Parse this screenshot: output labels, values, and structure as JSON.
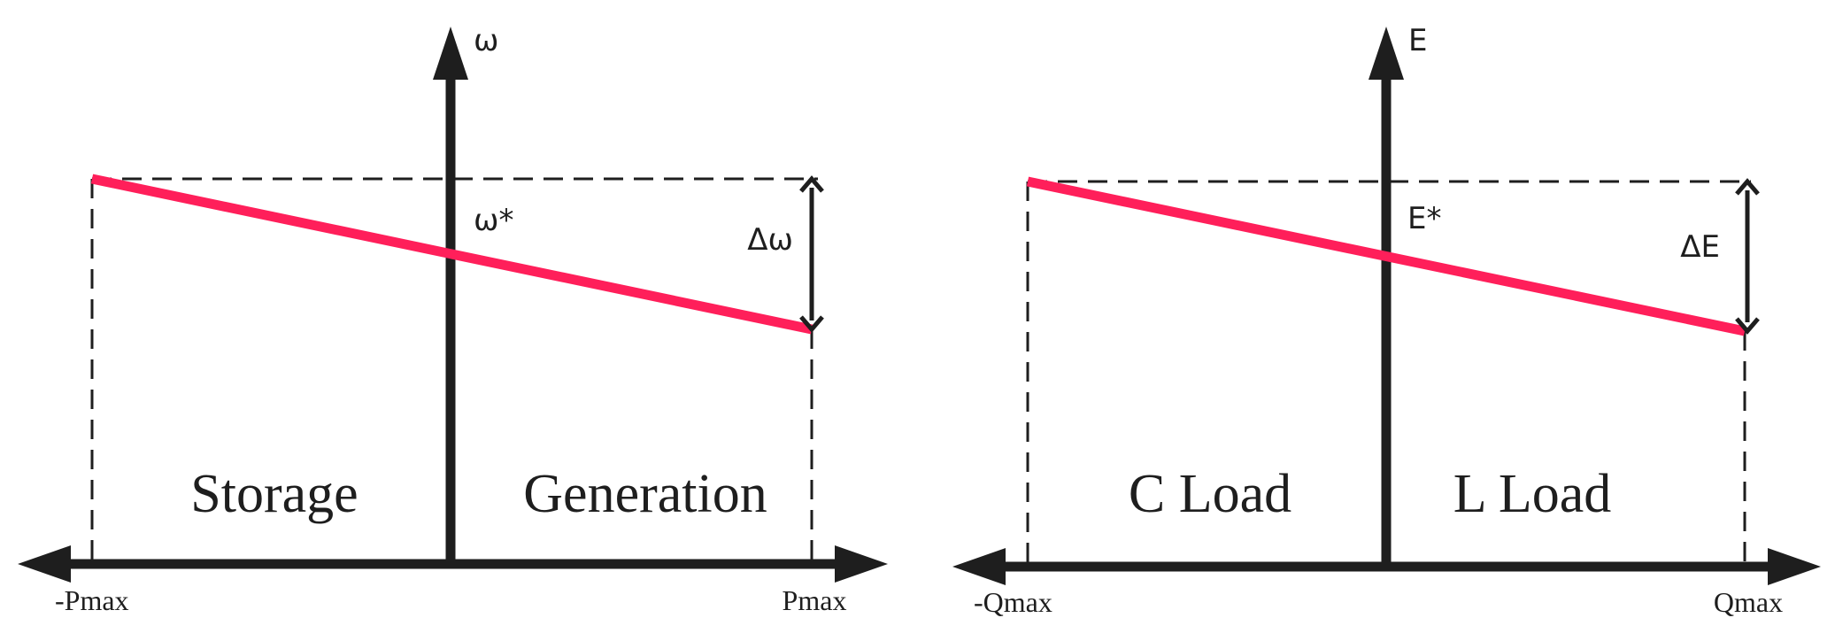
{
  "left_diagram": {
    "y_axis_label": "ω",
    "setpoint_label": "ω*",
    "delta_label": "Δω",
    "region_left": "Storage",
    "region_right": "Generation",
    "x_min_label": "-Pmax",
    "x_max_label": "Pmax",
    "droop_color": "#ff1f5a"
  },
  "right_diagram": {
    "y_axis_label": "E",
    "setpoint_label": "E*",
    "delta_label": "ΔE",
    "region_left": "C Load",
    "region_right": "L Load",
    "x_min_label": "-Qmax",
    "x_max_label": "Qmax",
    "droop_color": "#ff1f5a"
  }
}
